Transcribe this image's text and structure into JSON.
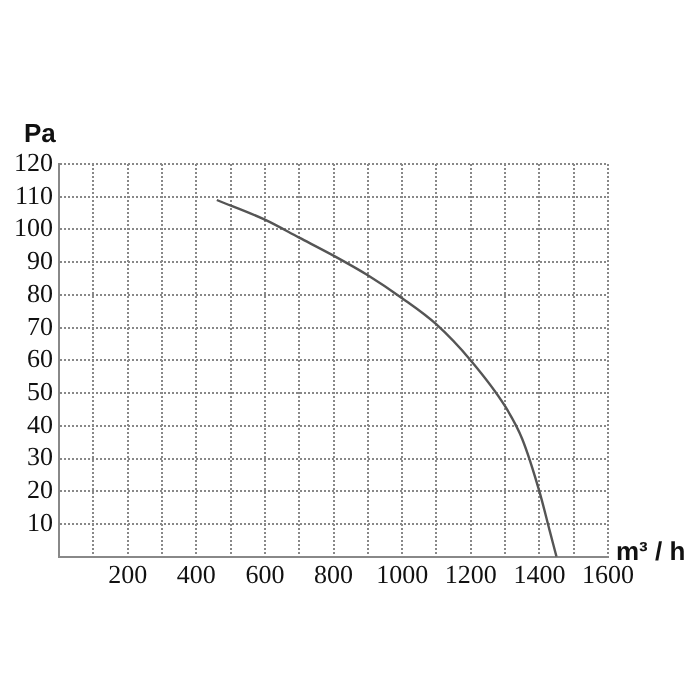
{
  "chart_data": {
    "type": "line",
    "xlabel": "m³ / h",
    "ylabel": "Pa",
    "x": [
      460,
      600,
      700,
      800,
      900,
      1000,
      1100,
      1200,
      1300,
      1350,
      1400,
      1430,
      1450
    ],
    "series": [
      {
        "color": "#555555",
        "values": [
          109,
          103,
          97.5,
          92,
          86,
          79,
          71,
          60,
          46,
          36,
          20,
          8,
          0
        ]
      }
    ],
    "xlim": [
      0,
      1600
    ],
    "xticks": [
      {
        "value": 0,
        "label": null
      },
      {
        "value": 100,
        "label": null
      },
      200,
      {
        "value": 300,
        "label": null
      },
      400,
      {
        "value": 500,
        "label": null
      },
      600,
      {
        "value": 700,
        "label": null
      },
      800,
      {
        "value": 900,
        "label": null
      },
      1000,
      {
        "value": 1100,
        "label": null
      },
      1200,
      {
        "value": 1300,
        "label": null
      },
      1400,
      {
        "value": 1500,
        "label": null
      },
      1600
    ],
    "ylim": [
      0,
      120
    ],
    "yticks": [
      {
        "value": 0,
        "label": null
      },
      10,
      20,
      30,
      40,
      50,
      60,
      70,
      80,
      90,
      100,
      110,
      120
    ],
    "grid": true,
    "legend": false,
    "marker": "none",
    "line_style": "solid"
  }
}
